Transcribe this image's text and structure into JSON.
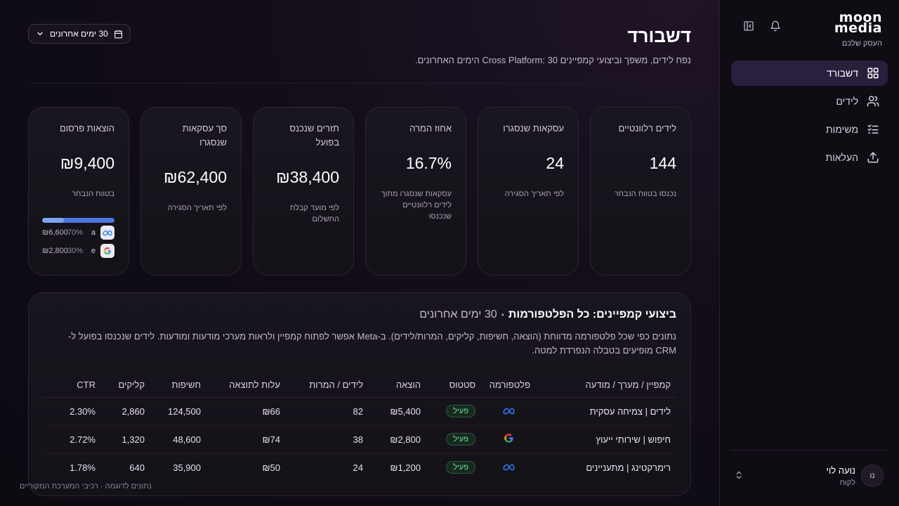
{
  "brand": {
    "logo_top": "moon",
    "logo_bottom": "media",
    "tagline": "העסק שלכם"
  },
  "sidebar": {
    "items": [
      {
        "label": "דשבורד",
        "icon": "dashboard-icon",
        "active": true
      },
      {
        "label": "לידים",
        "icon": "users-icon",
        "active": false
      },
      {
        "label": "משימות",
        "icon": "checklist-icon",
        "active": false
      },
      {
        "label": "העלאות",
        "icon": "upload-icon",
        "active": false
      }
    ],
    "user": {
      "initials": "נו",
      "name": "נועה לוי",
      "role": "לקוח"
    }
  },
  "header": {
    "title": "דשבורד",
    "subtitle": "נפח לידים, משפך וביצועי קמפיינים Cross Platform: 30 הימים האחרונים.",
    "date_range": "30 ימים אחרונים"
  },
  "cards": [
    {
      "label": "לידים רלוונטיים",
      "value": "144",
      "note": "נכנסו בטווח הנבחר"
    },
    {
      "label": "עסקאות שנסגרו",
      "value": "24",
      "note": "לפי תאריך הסגירה"
    },
    {
      "label": "אחוז המרה",
      "value": "16.7%",
      "note": "עסקאות שנסגרו מתוך לידים רלוונטיים שנכנסו"
    },
    {
      "label": "תזרים שנכנס בפועל",
      "value": "₪38,400",
      "note": "לפי מועד קבלת התשלום"
    },
    {
      "label": "סך עסקאות שנסגרו",
      "value": "₪62,400",
      "note": "לפי תאריך הסגירה"
    },
    {
      "label": "הוצאות פרסום",
      "value": "₪9,400",
      "note": "בטווח הנבחר",
      "split": [
        {
          "icon": "meta-icon",
          "letter": "a",
          "pct": "70%",
          "amount": "₪6,600",
          "share": 0.7
        },
        {
          "icon": "google-icon",
          "letter": "e",
          "pct": "30%",
          "amount": "₪2,800",
          "share": 0.3
        }
      ]
    }
  ],
  "campaigns": {
    "title": "ביצועי קמפיינים: כל הפלטפורמות",
    "separator": "•",
    "range": "30 ימים אחרונים",
    "description": "נתונים כפי שכל פלטפורמה מדווחת (הוצאה, חשיפות, קליקים, המרות/לידים). ב-Meta אפשר לפתוח קמפיין ולראות מערכי מודעות ומודעות. לידים שנכנסו בפועל ל-CRM מופיעים בטבלה הנפרדת למטה.",
    "columns": [
      "קמפיין / מערך / מודעה",
      "פלטפורמה",
      "סטטוס",
      "הוצאה",
      "לידים / המרות",
      "עלות לתוצאה",
      "חשיפות",
      "קליקים",
      "CTR"
    ],
    "rows": [
      {
        "name": "לידים | צמיחה עסקית",
        "platform": "meta-icon",
        "status": "פעיל",
        "spend": "₪5,400",
        "leads": "82",
        "cpr": "₪66",
        "impressions": "124,500",
        "clicks": "2,860",
        "ctr": "2.30%"
      },
      {
        "name": "חיפוש | שירותי ייעוץ",
        "platform": "google-icon",
        "status": "פעיל",
        "spend": "₪2,800",
        "leads": "38",
        "cpr": "₪74",
        "impressions": "48,600",
        "clicks": "1,320",
        "ctr": "2.72%"
      },
      {
        "name": "רימרקטינג | מתעניינים",
        "platform": "meta-icon",
        "status": "פעיל",
        "spend": "₪1,200",
        "leads": "24",
        "cpr": "₪50",
        "impressions": "35,900",
        "clicks": "640",
        "ctr": "1.78%"
      }
    ]
  },
  "footer_note": "נתונים לדוגמה · רכיבי המערכת המקוריים"
}
